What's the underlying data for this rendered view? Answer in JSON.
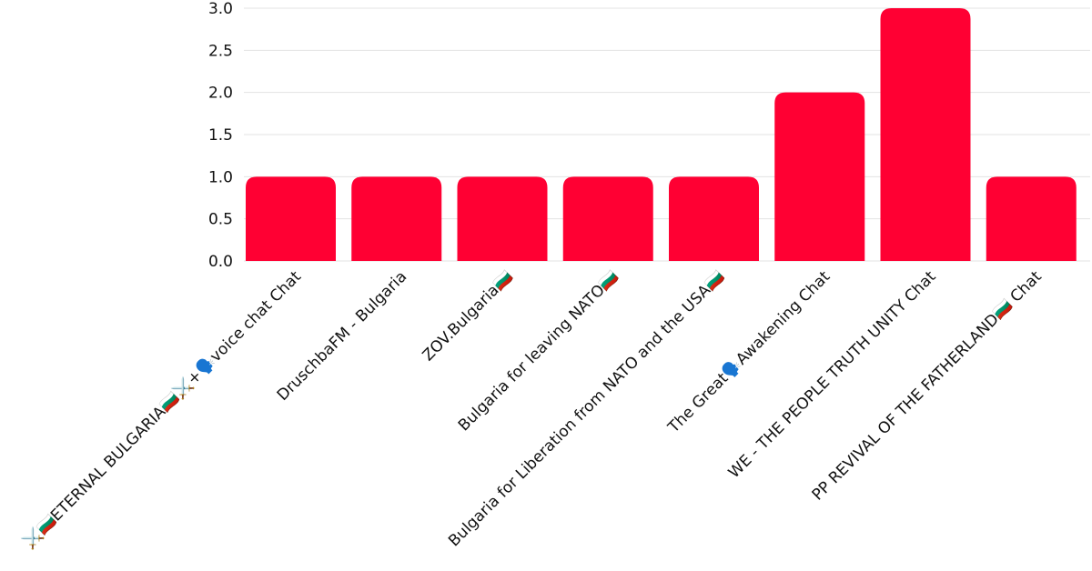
{
  "chart_data": {
    "type": "bar",
    "categories": [
      "⚔️🇧🇬ETERNAL BULGARIA🇧🇬⚔️+🗣️voice chat Chat",
      "DruschbaFM - Bulgaria",
      "ZOV.Bulgaria🇧🇬",
      "Bulgaria for leaving NATO🇧🇬",
      "Bulgaria for Liberation from NATO and the USA🇧🇬",
      "The Great🗣️Awakening Chat",
      "WE - THE PEOPLE TRUTH UNITY Chat",
      "PP REVIVAL OF THE FATHERLAND🇧🇬 Chat"
    ],
    "values": [
      1,
      1,
      1,
      1,
      1,
      2,
      3,
      1
    ],
    "ylim": [
      0,
      3
    ],
    "yticks": [
      "0.0",
      "0.5",
      "1.0",
      "1.5",
      "2.0",
      "2.5",
      "3.0"
    ],
    "grid": true,
    "bar_color": "#ff0033"
  }
}
